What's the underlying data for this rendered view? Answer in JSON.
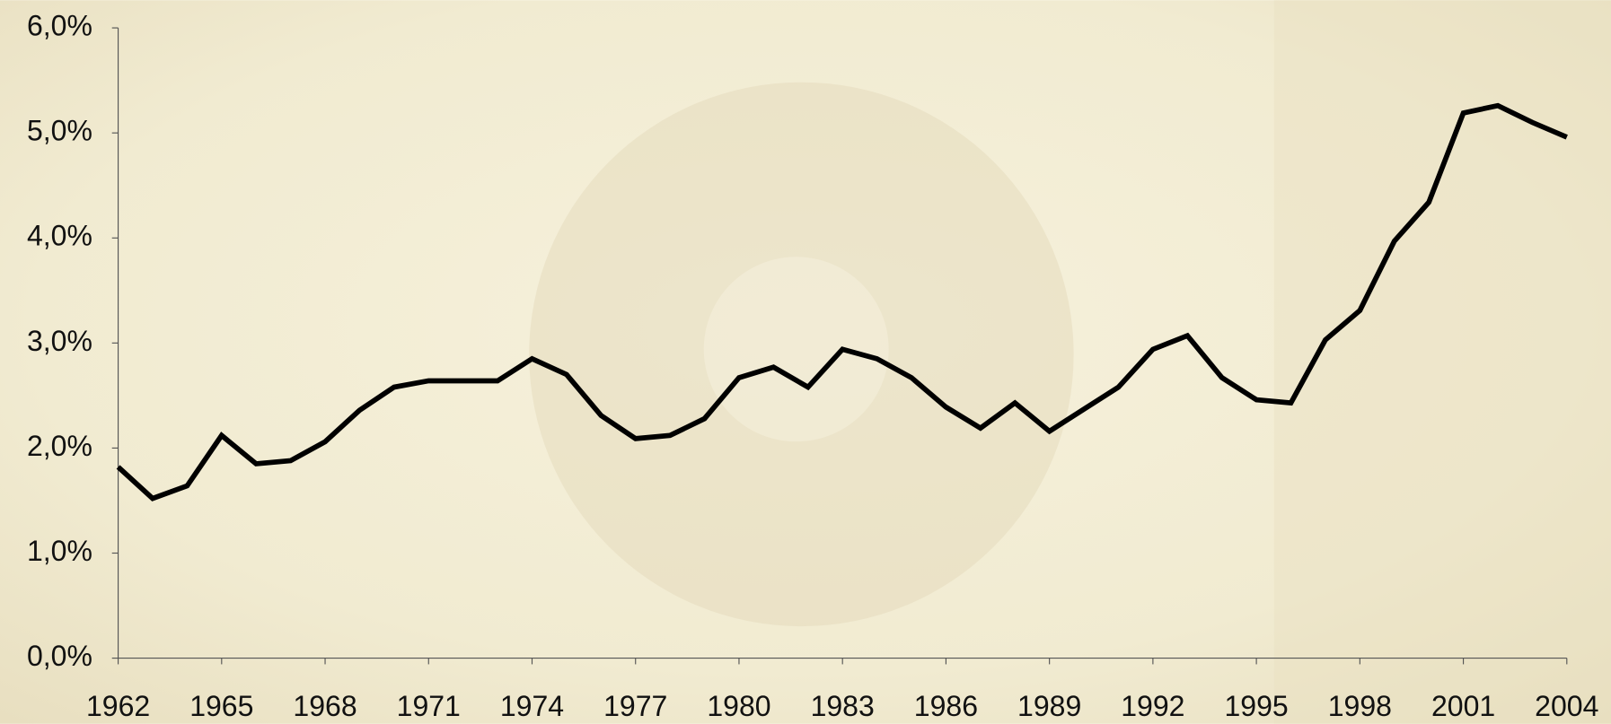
{
  "chart_data": {
    "type": "line",
    "x": [
      1962,
      1963,
      1964,
      1965,
      1966,
      1967,
      1968,
      1969,
      1970,
      1971,
      1972,
      1973,
      1974,
      1975,
      1976,
      1977,
      1978,
      1979,
      1980,
      1981,
      1982,
      1983,
      1984,
      1985,
      1986,
      1987,
      1988,
      1989,
      1990,
      1991,
      1992,
      1993,
      1994,
      1995,
      1996,
      1997,
      1998,
      1999,
      2000,
      2001,
      2002,
      2003,
      2004
    ],
    "values": [
      1.82,
      1.52,
      1.64,
      2.12,
      1.85,
      1.88,
      2.06,
      2.36,
      2.58,
      2.64,
      2.64,
      2.64,
      2.85,
      2.7,
      2.31,
      2.09,
      2.12,
      2.28,
      2.67,
      2.77,
      2.58,
      2.94,
      2.85,
      2.67,
      2.39,
      2.19,
      2.43,
      2.16,
      2.37,
      2.58,
      2.94,
      3.07,
      2.67,
      2.46,
      2.43,
      3.03,
      3.31,
      3.97,
      4.34,
      5.19,
      5.26,
      5.1,
      4.96
    ],
    "color": "#000000",
    "xlim": [
      1962,
      2004
    ],
    "xticks": [
      1962,
      1965,
      1968,
      1971,
      1974,
      1977,
      1980,
      1983,
      1986,
      1989,
      1992,
      1995,
      1998,
      2001,
      2004
    ],
    "ylim": [
      0,
      6
    ],
    "yticks": [
      {
        "value": 0,
        "label": "0,0%"
      },
      {
        "value": 1,
        "label": "1,0%"
      },
      {
        "value": 2,
        "label": "2,0%"
      },
      {
        "value": 3,
        "label": "3,0%"
      },
      {
        "value": 4,
        "label": "4,0%"
      },
      {
        "value": 5,
        "label": "5,0%"
      },
      {
        "value": 6,
        "label": "6,0%"
      }
    ],
    "grid": false
  }
}
